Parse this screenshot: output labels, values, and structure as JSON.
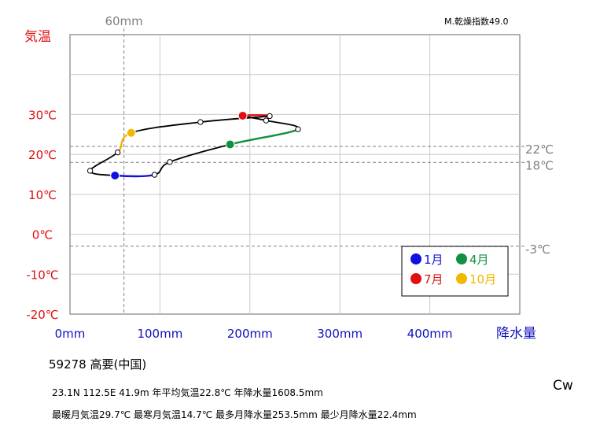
{
  "chart_data": {
    "type": "line",
    "title": "",
    "ylabel": "気温",
    "xlabel": "降水量",
    "xlim": [
      0,
      500
    ],
    "ylim": [
      -20,
      50
    ],
    "x_ticks": [
      "0mm",
      "100mm",
      "200mm",
      "300mm",
      "400mm"
    ],
    "y_ticks": [
      "-20℃",
      "-10℃",
      "0℃",
      "10℃",
      "20℃",
      "30℃"
    ],
    "reference_lines": [
      {
        "axis": "x",
        "value": 60,
        "label": "60mm"
      },
      {
        "axis": "y",
        "value": 22,
        "label": "22℃"
      },
      {
        "axis": "y",
        "value": 18,
        "label": "18℃"
      },
      {
        "axis": "y",
        "value": -3,
        "label": "-3℃"
      }
    ],
    "monthly_points": [
      {
        "month": 1,
        "precipitation": 50,
        "temperature": 14.7
      },
      {
        "month": 2,
        "precipitation": 94,
        "temperature": 14.9
      },
      {
        "month": 3,
        "precipitation": 111,
        "temperature": 18.1
      },
      {
        "month": 4,
        "precipitation": 178,
        "temperature": 22.5
      },
      {
        "month": 5,
        "precipitation": 253.5,
        "temperature": 26.3
      },
      {
        "month": 6,
        "precipitation": 218,
        "temperature": 28.5
      },
      {
        "month": 7,
        "precipitation": 192,
        "temperature": 29.7
      },
      {
        "month": 8,
        "precipitation": 222,
        "temperature": 29.6
      },
      {
        "month": 9,
        "precipitation": 145,
        "temperature": 28.1
      },
      {
        "month": 10,
        "precipitation": 68,
        "temperature": 25.4
      },
      {
        "month": 11,
        "precipitation": 53,
        "temperature": 20.5
      },
      {
        "month": 12,
        "precipitation": 22.4,
        "temperature": 15.9
      }
    ],
    "highlight_months": [
      {
        "month": 1,
        "label": "1月",
        "color": "#1010e0"
      },
      {
        "month": 4,
        "label": "4月",
        "color": "#109040"
      },
      {
        "month": 7,
        "label": "7月",
        "color": "#e01010"
      },
      {
        "month": 10,
        "label": "10月",
        "color": "#f0b800"
      }
    ],
    "legend_placement": "bottom-right",
    "grid": true
  },
  "info": {
    "station": "59278 高要(中国)",
    "line1": "23.1N 112.5E 41.9m 年平均気温22.8℃ 年降水量1608.5mm",
    "line2": "最暖月気温29.7℃ 最寒月気温14.7℃ 最多月降水量253.5mm 最少月降水量22.4mm",
    "koppen": "Cw",
    "aridity": "M.乾燥指数49.0"
  },
  "colors": {
    "temp_axis": "#e01010",
    "precip_axis": "#1010c0",
    "reference": "#808080",
    "curve": "#000000"
  }
}
